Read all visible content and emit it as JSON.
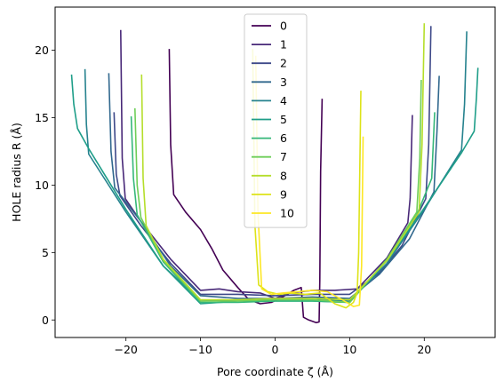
{
  "chart_data": {
    "type": "line",
    "xlabel": "Pore coordinate ζ (Å)",
    "ylabel": "HOLE radius R (Å)",
    "xlim": [
      -29.5,
      29.5
    ],
    "ylim": [
      -1.3,
      23.2
    ],
    "xticks": [
      -20,
      -10,
      0,
      10,
      20
    ],
    "yticks": [
      0,
      5,
      10,
      15,
      20
    ],
    "grid": false,
    "legend_position": "top-center",
    "series": [
      {
        "name": "0",
        "color": "#440154",
        "x": [
          -14.2,
          -14.0,
          -13.6,
          -12.0,
          -10.0,
          -8.5,
          -7.0,
          -5.0,
          -3.5,
          -2.0,
          -0.5,
          1.0,
          2.5,
          3.5,
          3.8,
          4.5,
          5.0,
          5.5,
          5.9,
          6.0,
          6.1,
          6.3
        ],
        "y": [
          20.1,
          13.0,
          9.3,
          8.0,
          6.7,
          5.3,
          3.7,
          2.4,
          1.5,
          1.2,
          1.3,
          1.7,
          2.2,
          2.4,
          0.2,
          0.0,
          -0.1,
          -0.2,
          -0.15,
          3.0,
          11.0,
          16.4
        ]
      },
      {
        "name": "1",
        "color": "#482878",
        "x": [
          -20.7,
          -20.5,
          -20.1,
          -18.0,
          -14.0,
          -10.0,
          -7.5,
          -5.0,
          -2.0,
          0.0,
          2.0,
          5.0,
          8.0,
          11.0,
          15.0,
          17.8,
          18.1,
          18.4
        ],
        "y": [
          21.5,
          12.0,
          9.0,
          7.3,
          4.5,
          2.2,
          2.3,
          2.1,
          2.0,
          1.6,
          2.0,
          2.2,
          2.2,
          2.3,
          4.6,
          7.2,
          9.0,
          15.2
        ]
      },
      {
        "name": "2",
        "color": "#3e4989",
        "x": [
          -21.6,
          -21.3,
          -20.8,
          -18.0,
          -14.0,
          -10.0,
          -5.0,
          0.0,
          5.0,
          10.0,
          14.0,
          17.0,
          20.2,
          20.6,
          20.9
        ],
        "y": [
          15.4,
          10.8,
          9.2,
          7.0,
          4.2,
          1.9,
          1.9,
          1.8,
          1.9,
          1.9,
          3.5,
          5.5,
          9.0,
          13.0,
          21.8
        ]
      },
      {
        "name": "3",
        "color": "#31688e",
        "x": [
          -22.3,
          -22.0,
          -21.5,
          -18.0,
          -14.0,
          -10.0,
          -5.0,
          0.0,
          5.0,
          10.0,
          14.0,
          18.0,
          21.3,
          21.7,
          22.0
        ],
        "y": [
          18.3,
          12.5,
          9.8,
          7.3,
          4.0,
          1.8,
          1.6,
          1.6,
          1.7,
          1.6,
          3.4,
          6.0,
          9.5,
          14.0,
          18.1
        ]
      },
      {
        "name": "4",
        "color": "#26828e",
        "x": [
          -25.5,
          -25.3,
          -25.0,
          -20.0,
          -15.0,
          -10.0,
          -5.0,
          0.0,
          5.0,
          10.0,
          15.0,
          20.0,
          25.0,
          25.4,
          25.7
        ],
        "y": [
          18.6,
          14.5,
          12.3,
          8.0,
          4.0,
          1.4,
          1.5,
          1.5,
          1.5,
          1.4,
          4.2,
          8.2,
          12.6,
          16.0,
          21.4
        ]
      },
      {
        "name": "5",
        "color": "#1f9e89",
        "x": [
          -27.3,
          -27.0,
          -26.5,
          -25.0,
          -20.0,
          -15.0,
          -10.0,
          -5.0,
          0.0,
          5.0,
          10.0,
          15.0,
          20.0,
          25.0,
          26.7,
          27.0,
          27.2
        ],
        "y": [
          18.2,
          16.0,
          14.2,
          12.7,
          8.2,
          4.0,
          1.2,
          1.4,
          1.4,
          1.4,
          1.3,
          4.4,
          8.3,
          12.4,
          14.0,
          16.5,
          18.7
        ]
      },
      {
        "name": "6",
        "color": "#35b779",
        "x": [
          -19.3,
          -19.0,
          -18.5,
          -15.0,
          -10.0,
          -5.0,
          0.0,
          5.0,
          10.0,
          15.0,
          19.0,
          21.0,
          21.4
        ],
        "y": [
          15.1,
          10.5,
          7.8,
          4.3,
          1.3,
          1.3,
          1.4,
          1.4,
          1.3,
          4.5,
          7.8,
          10.5,
          15.4
        ]
      },
      {
        "name": "7",
        "color": "#6ece58",
        "x": [
          -18.8,
          -18.5,
          -18.0,
          -15.0,
          -10.0,
          -5.0,
          0.0,
          5.0,
          10.0,
          15.0,
          19.0,
          19.4,
          19.6
        ],
        "y": [
          15.7,
          10.0,
          7.6,
          4.4,
          1.4,
          1.4,
          1.5,
          1.5,
          1.3,
          4.5,
          8.0,
          12.0,
          17.8
        ]
      },
      {
        "name": "8",
        "color": "#b5de2b",
        "x": [
          -17.9,
          -17.7,
          -17.3,
          -15.0,
          -10.0,
          -5.0,
          0.0,
          5.0,
          10.0,
          15.0,
          19.3,
          19.7,
          20.0
        ],
        "y": [
          18.2,
          10.5,
          7.0,
          4.5,
          1.5,
          1.5,
          1.6,
          1.6,
          1.5,
          4.4,
          8.0,
          13.0,
          22.0
        ]
      },
      {
        "name": "9",
        "color": "#dde318",
        "x": [
          -3.0,
          -2.7,
          -2.2,
          -1.0,
          0.5,
          2.0,
          4.0,
          6.0,
          8.0,
          9.5,
          10.5,
          11.0,
          11.2,
          11.5
        ],
        "y": [
          20.1,
          7.0,
          2.6,
          2.1,
          1.9,
          2.0,
          1.9,
          2.0,
          1.2,
          0.9,
          1.3,
          2.0,
          5.0,
          17.0
        ]
      },
      {
        "name": "10",
        "color": "#fde725",
        "x": [
          -2.6,
          -2.3,
          -1.8,
          -0.5,
          1.0,
          3.0,
          5.0,
          7.0,
          9.0,
          10.5,
          11.3,
          11.6,
          11.8
        ],
        "y": [
          19.6,
          8.0,
          2.3,
          1.9,
          2.0,
          2.1,
          2.2,
          2.1,
          1.5,
          1.0,
          1.1,
          4.0,
          13.6
        ]
      }
    ]
  }
}
